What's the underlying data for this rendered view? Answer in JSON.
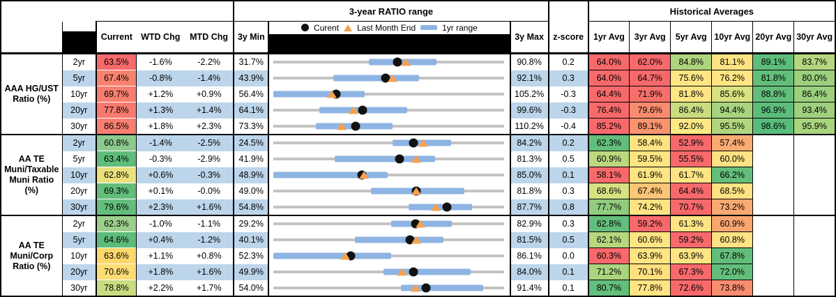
{
  "header": {
    "range_title": "3-year RATIO range",
    "hist_title": "Historical Averages",
    "cols": {
      "current": "Current",
      "wtd": "WTD Chg",
      "mtd": "MTD Chg",
      "min": "3y Min",
      "max": "3y Max",
      "z": "z-score"
    },
    "avg_cols": [
      "1yr Avg",
      "3yr Avg",
      "5yr Avg",
      "10yr Avg",
      "20yr Avg",
      "30yr Avg"
    ],
    "legend": {
      "current": "Curent",
      "last_month": "Last Month End",
      "range": "1yr range"
    }
  },
  "colors": {
    "stripe": "#BCD5EA",
    "bar": "#8EB4E3",
    "track": "#C3C3C3",
    "dot": "#111111",
    "triangle": "#F6A14F",
    "heat_red": "#F8696B",
    "heat_yellow": "#FFE483",
    "heat_green": "#63BE7B"
  },
  "chart_data": {
    "type": "bullet-range-table",
    "unit": "%",
    "groups": [
      {
        "label": "AAA HG/UST Ratio (%)",
        "label_lines": [
          "AAA HG/UST",
          "Ratio (%)"
        ],
        "empty_avg_cols": 0,
        "rows": [
          {
            "tenor": "2yr",
            "current": "63.5%",
            "current_bg": "#F8696B",
            "wtd": "-1.6%",
            "mtd": "-2.2%",
            "min3y": "31.7%",
            "max3y": "90.8%",
            "z": "0.2",
            "range": {
              "min": 31.7,
              "max": 90.8,
              "current": 63.5,
              "last_month_end": 65.7,
              "yr1_lo": 56.2,
              "yr1_hi": 73.5
            },
            "avgs": [
              {
                "v": "64.0%",
                "bg": "#F8696B"
              },
              {
                "v": "62.0%",
                "bg": "#F8696B"
              },
              {
                "v": "84.8%",
                "bg": "#AFD47E"
              },
              {
                "v": "81.1%",
                "bg": "#FFE383"
              },
              {
                "v": "89.1%",
                "bg": "#5FBD7B"
              },
              {
                "v": "83.7%",
                "bg": "#B4D67F"
              }
            ]
          },
          {
            "tenor": "5yr",
            "current": "67.4%",
            "current_bg": "#F8816F",
            "wtd": "-0.8%",
            "mtd": "-1.4%",
            "min3y": "43.9%",
            "max3y": "92.1%",
            "z": "0.3",
            "range": {
              "min": 43.9,
              "max": 92.1,
              "current": 67.4,
              "last_month_end": 68.8,
              "yr1_lo": 56.4,
              "yr1_hi": 74.3
            },
            "avgs": [
              {
                "v": "64.0%",
                "bg": "#F8696B"
              },
              {
                "v": "64.7%",
                "bg": "#F8696B"
              },
              {
                "v": "75.6%",
                "bg": "#FFE684"
              },
              {
                "v": "76.2%",
                "bg": "#FFE584"
              },
              {
                "v": "81.8%",
                "bg": "#63BE7B"
              },
              {
                "v": "80.0%",
                "bg": "#9CCF7E"
              }
            ]
          },
          {
            "tenor": "10yr",
            "current": "69.7%",
            "current_bg": "#F87D6E",
            "wtd": "+1.2%",
            "mtd": "+0.9%",
            "min3y": "56.4%",
            "max3y": "105.2%",
            "z": "-0.3",
            "range": {
              "min": 56.4,
              "max": 105.2,
              "current": 69.7,
              "last_month_end": 68.8,
              "yr1_lo": 56.4,
              "yr1_hi": 75.7
            },
            "avgs": [
              {
                "v": "64.4%",
                "bg": "#F8696B"
              },
              {
                "v": "71.9%",
                "bg": "#F8706C"
              },
              {
                "v": "81.8%",
                "bg": "#FFE583"
              },
              {
                "v": "85.6%",
                "bg": "#D9E282"
              },
              {
                "v": "88.8%",
                "bg": "#63BE7B"
              },
              {
                "v": "86.4%",
                "bg": "#9CCF7E"
              }
            ]
          },
          {
            "tenor": "20yr",
            "current": "77.8%",
            "current_bg": "#F87A6E",
            "wtd": "+1.3%",
            "mtd": "+1.4%",
            "min3y": "64.1%",
            "max3y": "99.6%",
            "z": "-0.3",
            "range": {
              "min": 64.1,
              "max": 99.6,
              "current": 77.8,
              "last_month_end": 76.4,
              "yr1_lo": 71.2,
              "yr1_hi": 84.7
            },
            "avgs": [
              {
                "v": "76.4%",
                "bg": "#F8696B"
              },
              {
                "v": "79.6%",
                "bg": "#F98C6F"
              },
              {
                "v": "86.4%",
                "bg": "#C9DC80"
              },
              {
                "v": "94.4%",
                "bg": "#A8D47F"
              },
              {
                "v": "96.9%",
                "bg": "#5CBD7B"
              },
              {
                "v": "93.4%",
                "bg": "#9ED07E"
              }
            ]
          },
          {
            "tenor": "30yr",
            "current": "86.5%",
            "current_bg": "#F87E6F",
            "wtd": "+1.8%",
            "mtd": "+2.3%",
            "min3y": "73.3%",
            "max3y": "110.2%",
            "z": "-0.4",
            "range": {
              "min": 73.3,
              "max": 110.2,
              "current": 86.5,
              "last_month_end": 84.2,
              "yr1_lo": 80.1,
              "yr1_hi": 92.4
            },
            "avgs": [
              {
                "v": "85.2%",
                "bg": "#F8696B"
              },
              {
                "v": "89.1%",
                "bg": "#F9946F"
              },
              {
                "v": "92.0%",
                "bg": "#FFE884"
              },
              {
                "v": "95.5%",
                "bg": "#B1D67F"
              },
              {
                "v": "98.6%",
                "bg": "#58BC7B"
              },
              {
                "v": "95.9%",
                "bg": "#A9D47E"
              }
            ]
          }
        ]
      },
      {
        "label": "AA TE Muni/Taxable Muni Ratio (%)",
        "label_lines": [
          "AA TE",
          "Muni/Taxable",
          "Muni Ratio",
          "(%)"
        ],
        "empty_avg_cols": 2,
        "rows": [
          {
            "tenor": "2yr",
            "current": "60.8%",
            "current_bg": "#8CC98E",
            "wtd": "-1.4%",
            "mtd": "-2.5%",
            "min3y": "24.5%",
            "max3y": "84.2%",
            "z": "0.2",
            "range": {
              "min": 24.5,
              "max": 84.2,
              "current": 60.8,
              "last_month_end": 63.3,
              "yr1_lo": 55.4,
              "yr1_hi": 70.5
            },
            "avgs": [
              {
                "v": "62.3%",
                "bg": "#63BE7B"
              },
              {
                "v": "58.4%",
                "bg": "#FFE283"
              },
              {
                "v": "52.9%",
                "bg": "#F8696B"
              },
              {
                "v": "57.4%",
                "bg": "#FAAB72"
              }
            ]
          },
          {
            "tenor": "5yr",
            "current": "63.4%",
            "current_bg": "#5FBD7B",
            "wtd": "-0.3%",
            "mtd": "-2.9%",
            "min3y": "41.9%",
            "max3y": "81.3%",
            "z": "0.5",
            "range": {
              "min": 41.9,
              "max": 81.3,
              "current": 63.4,
              "last_month_end": 66.3,
              "yr1_lo": 52.4,
              "yr1_hi": 69.6
            },
            "avgs": [
              {
                "v": "60.9%",
                "bg": "#BCD87F"
              },
              {
                "v": "59.5%",
                "bg": "#FFE483"
              },
              {
                "v": "55.5%",
                "bg": "#F8696B"
              },
              {
                "v": "60.0%",
                "bg": "#FFE284"
              }
            ]
          },
          {
            "tenor": "10yr",
            "current": "62.8%",
            "current_bg": "#EBE07C",
            "wtd": "+0.6%",
            "mtd": "-0.3%",
            "min3y": "48.9%",
            "max3y": "85.0%",
            "z": "0.1",
            "range": {
              "min": 48.9,
              "max": 85.0,
              "current": 62.8,
              "last_month_end": 63.1,
              "yr1_lo": 48.9,
              "yr1_hi": 66.8
            },
            "avgs": [
              {
                "v": "58.1%",
                "bg": "#F8696B"
              },
              {
                "v": "61.9%",
                "bg": "#FFE483"
              },
              {
                "v": "61.7%",
                "bg": "#FFE483"
              },
              {
                "v": "66.2%",
                "bg": "#63BE7B"
              }
            ]
          },
          {
            "tenor": "20yr",
            "current": "69.3%",
            "current_bg": "#63BE7B",
            "wtd": "+0.1%",
            "mtd": "-0.0%",
            "min3y": "49.0%",
            "max3y": "81.8%",
            "z": "0.3",
            "range": {
              "min": 49.0,
              "max": 81.8,
              "current": 69.3,
              "last_month_end": 69.3,
              "yr1_lo": 62.9,
              "yr1_hi": 76.2
            },
            "avgs": [
              {
                "v": "68.6%",
                "bg": "#D6E181"
              },
              {
                "v": "67.4%",
                "bg": "#FCC577"
              },
              {
                "v": "64.4%",
                "bg": "#F8696B"
              },
              {
                "v": "68.5%",
                "bg": "#FFE383"
              }
            ]
          },
          {
            "tenor": "30yr",
            "current": "79.6%",
            "current_bg": "#63BE7B",
            "wtd": "+2.3%",
            "mtd": "+1.6%",
            "min3y": "54.8%",
            "max3y": "87.7%",
            "z": "0.8",
            "range": {
              "min": 54.8,
              "max": 87.7,
              "current": 79.6,
              "last_month_end": 78.0,
              "yr1_lo": 74.1,
              "yr1_hi": 83.2
            },
            "avgs": [
              {
                "v": "77.7%",
                "bg": "#90CB7E"
              },
              {
                "v": "74.2%",
                "bg": "#FFE383"
              },
              {
                "v": "70.7%",
                "bg": "#F8696B"
              },
              {
                "v": "73.2%",
                "bg": "#FAA971"
              }
            ]
          }
        ]
      },
      {
        "label": "AA TE Muni/Corp Ratio (%)",
        "label_lines": [
          "AA TE",
          "Muni/Corp",
          "Ratio (%)"
        ],
        "empty_avg_cols": 2,
        "rows": [
          {
            "tenor": "2yr",
            "current": "62.3%",
            "current_bg": "#9DCF8C",
            "wtd": "-1.0%",
            "mtd": "-1.1%",
            "min3y": "29.2%",
            "max3y": "82.9%",
            "z": "0.3",
            "range": {
              "min": 29.2,
              "max": 82.9,
              "current": 62.3,
              "last_month_end": 63.4,
              "yr1_lo": 56.6,
              "yr1_hi": 70.7
            },
            "avgs": [
              {
                "v": "62.8%",
                "bg": "#63BE7B"
              },
              {
                "v": "59.2%",
                "bg": "#F8696B"
              },
              {
                "v": "61.3%",
                "bg": "#FFE483"
              },
              {
                "v": "60.9%",
                "bg": "#F9A671"
              }
            ]
          },
          {
            "tenor": "5yr",
            "current": "64.6%",
            "current_bg": "#5DBC7A",
            "wtd": "+0.4%",
            "mtd": "-1.2%",
            "min3y": "40.1%",
            "max3y": "81.5%",
            "z": "0.5",
            "range": {
              "min": 40.1,
              "max": 81.5,
              "current": 64.6,
              "last_month_end": 65.8,
              "yr1_lo": 54.7,
              "yr1_hi": 70.6
            },
            "avgs": [
              {
                "v": "62.1%",
                "bg": "#B7D77F"
              },
              {
                "v": "60.6%",
                "bg": "#FFE483"
              },
              {
                "v": "59.2%",
                "bg": "#F8696B"
              },
              {
                "v": "60.8%",
                "bg": "#FFE284"
              }
            ]
          },
          {
            "tenor": "10yr",
            "current": "63.6%",
            "current_bg": "#FBD76C",
            "wtd": "+1.1%",
            "mtd": "+0.8%",
            "min3y": "52.3%",
            "max3y": "86.1%",
            "z": "0.0",
            "range": {
              "min": 52.3,
              "max": 86.1,
              "current": 63.6,
              "last_month_end": 62.8,
              "yr1_lo": 52.3,
              "yr1_hi": 69.6
            },
            "avgs": [
              {
                "v": "60.3%",
                "bg": "#F8696B"
              },
              {
                "v": "63.9%",
                "bg": "#FFE483"
              },
              {
                "v": "63.9%",
                "bg": "#FFE483"
              },
              {
                "v": "67.8%",
                "bg": "#63BE7B"
              }
            ]
          },
          {
            "tenor": "20yr",
            "current": "70.6%",
            "current_bg": "#FCDC73",
            "wtd": "+1.8%",
            "mtd": "+1.6%",
            "min3y": "49.9%",
            "max3y": "84.0%",
            "z": "0.1",
            "range": {
              "min": 49.9,
              "max": 84.0,
              "current": 70.6,
              "last_month_end": 69.0,
              "yr1_lo": 66.2,
              "yr1_hi": 79.1
            },
            "avgs": [
              {
                "v": "71.2%",
                "bg": "#ABD47E"
              },
              {
                "v": "70.1%",
                "bg": "#FFDF7E"
              },
              {
                "v": "67.3%",
                "bg": "#F8696B"
              },
              {
                "v": "72.0%",
                "bg": "#63BE7B"
              }
            ]
          },
          {
            "tenor": "30yr",
            "current": "78.8%",
            "current_bg": "#C9DC80",
            "wtd": "+2.2%",
            "mtd": "+1.7%",
            "min3y": "54.0%",
            "max3y": "91.4%",
            "z": "0.1",
            "range": {
              "min": 54.0,
              "max": 91.4,
              "current": 78.8,
              "last_month_end": 77.1,
              "yr1_lo": 74.7,
              "yr1_hi": 88.0
            },
            "avgs": [
              {
                "v": "80.7%",
                "bg": "#63BE7B"
              },
              {
                "v": "77.8%",
                "bg": "#FFE483"
              },
              {
                "v": "72.6%",
                "bg": "#F8696B"
              },
              {
                "v": "73.8%",
                "bg": "#F98D70"
              }
            ]
          }
        ]
      }
    ]
  }
}
